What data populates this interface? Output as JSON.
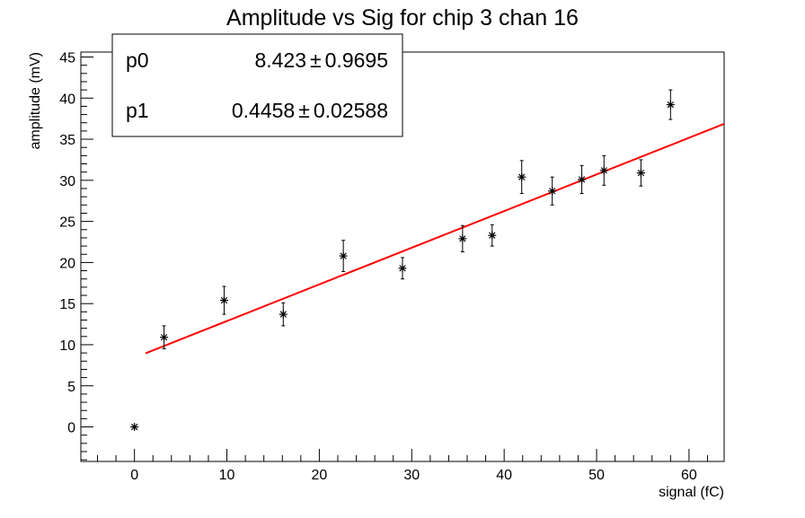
{
  "chart_data": {
    "type": "scatter",
    "title": "Amplitude vs Sig for chip 3 chan 16",
    "xlabel": "signal (fC)",
    "ylabel": "amplitude (mV)",
    "xlim": [
      -5.8,
      63.8
    ],
    "ylim": [
      -4.2,
      45.6
    ],
    "x_ticks": [
      0,
      10,
      20,
      30,
      40,
      50,
      60
    ],
    "y_ticks": [
      0,
      5,
      10,
      15,
      20,
      25,
      30,
      35,
      40,
      45
    ],
    "grid": false,
    "points": [
      {
        "x": 0.0,
        "y": 0.0,
        "err": 0.0
      },
      {
        "x": 3.2,
        "y": 10.9,
        "err": 1.4
      },
      {
        "x": 9.7,
        "y": 15.4,
        "err": 1.7
      },
      {
        "x": 16.1,
        "y": 13.7,
        "err": 1.4
      },
      {
        "x": 22.6,
        "y": 20.8,
        "err": 1.9
      },
      {
        "x": 29.0,
        "y": 19.3,
        "err": 1.3
      },
      {
        "x": 35.5,
        "y": 22.9,
        "err": 1.6
      },
      {
        "x": 38.7,
        "y": 23.3,
        "err": 1.3
      },
      {
        "x": 41.9,
        "y": 30.4,
        "err": 2.0
      },
      {
        "x": 45.2,
        "y": 28.7,
        "err": 1.7
      },
      {
        "x": 48.4,
        "y": 30.1,
        "err": 1.7
      },
      {
        "x": 50.8,
        "y": 31.2,
        "err": 1.8
      },
      {
        "x": 54.8,
        "y": 30.9,
        "err": 1.6
      },
      {
        "x": 58.0,
        "y": 39.2,
        "err": 1.8
      }
    ],
    "fit": {
      "p0": 8.423,
      "p1": 0.4458,
      "x_range": [
        1.2,
        63.8
      ],
      "color": "#ff0000"
    },
    "stats_box": {
      "rows": [
        {
          "name": "p0",
          "value": "8.423",
          "pm": "±",
          "error": "0.9695"
        },
        {
          "name": "p1",
          "value": "0.4458",
          "pm": "±",
          "error": "0.02588"
        }
      ]
    }
  }
}
